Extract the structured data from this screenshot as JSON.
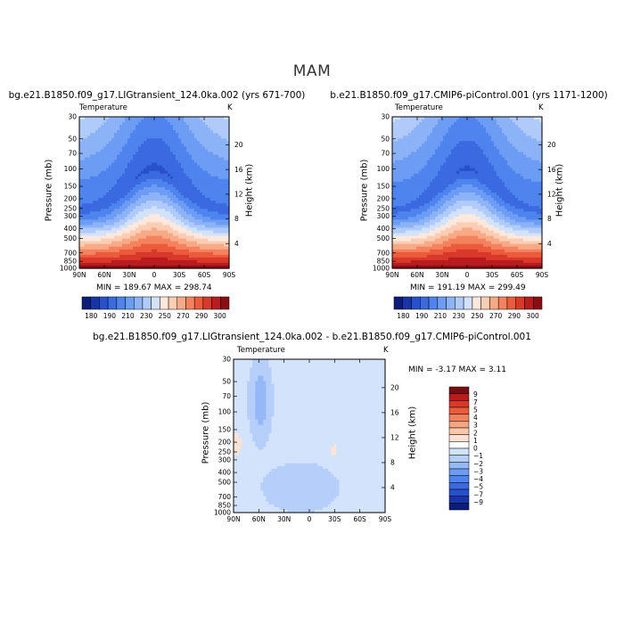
{
  "figure": {
    "title": "MAM"
  },
  "colors": {
    "abs_levels": [
      "#0d1e7a",
      "#1a33a8",
      "#2850cc",
      "#3a69e0",
      "#4f83ee",
      "#6c9cf4",
      "#8db3f7",
      "#b0caf9",
      "#d3e2fb",
      "#fde8dd",
      "#fbcdb3",
      "#f8aa86",
      "#f4825e",
      "#ec5b3c",
      "#d8392a",
      "#b81c1e",
      "#8a0d13"
    ],
    "diff_levels": [
      "#0d1e7a",
      "#1a33a8",
      "#2850cc",
      "#3a69e0",
      "#4f83ee",
      "#6c9cf4",
      "#95b8f7",
      "#b5cffa",
      "#d2e3fb",
      "#ffffff",
      "#fde0cf",
      "#fbc7ab",
      "#f8a67f",
      "#f4825e",
      "#ec5b3c",
      "#d8392a",
      "#b81c1e",
      "#7a0b10"
    ]
  },
  "panels": {
    "p1": {
      "title": "bg.e21.B1850.f09_g17.LIGtransient_124.0ka.002 (yrs 671-700)",
      "left_label": "Temperature",
      "right_label": "K",
      "ylabel": "Pressure (mb)",
      "y2label": "Height (km)",
      "minmax": "MIN = 189.67   MAX = 298.74"
    },
    "p2": {
      "title": "b.e21.B1850.f09_g17.CMIP6-piControl.001 (yrs 1171-1200)",
      "left_label": "Temperature",
      "right_label": "K",
      "ylabel": "Pressure (mb)",
      "y2label": "Height (km)",
      "minmax": "MIN = 191.19   MAX = 299.49"
    },
    "p3": {
      "title": "bg.e21.B1850.f09_g17.LIGtransient_124.0ka.002 - b.e21.B1850.f09_g17.CMIP6-piControl.001",
      "left_label": "Temperature",
      "right_label": "K",
      "ylabel": "Pressure (mb)",
      "y2label": "Height (km)",
      "minmax": "MIN =  -3.17   MAX =   3.11"
    }
  },
  "chart_data": [
    {
      "type": "heatmap",
      "title": "bg.e21.B1850.f09_g17.LIGtransient_124.0ka.002 (yrs 671-700)",
      "variable": "Temperature",
      "units": "K",
      "xlabel": "",
      "ylabel": "Pressure (mb)",
      "y2label": "Height (km)",
      "x_ticks": [
        "90N",
        "60N",
        "30N",
        "0",
        "30S",
        "60S",
        "90S"
      ],
      "x_values": [
        90,
        60,
        30,
        0,
        -30,
        -60,
        -90
      ],
      "y_ticks": [
        "30",
        "50",
        "70",
        "100",
        "150",
        "200",
        "250",
        "300",
        "400",
        "500",
        "700",
        "850",
        "1000"
      ],
      "y_values": [
        30,
        50,
        70,
        100,
        150,
        200,
        250,
        300,
        400,
        500,
        700,
        850,
        1000
      ],
      "y2_ticks": [
        "4",
        "8",
        "12",
        "16",
        "20"
      ],
      "contour_levels": [
        180,
        190,
        200,
        210,
        220,
        230,
        240,
        250,
        260,
        270,
        280,
        290,
        300
      ],
      "colorbar_labels": [
        "180",
        "190",
        "210",
        "230",
        "250",
        "270",
        "290",
        "300"
      ],
      "min": 189.67,
      "max": 298.74,
      "ylog": true,
      "ylim": [
        1000,
        30
      ]
    },
    {
      "type": "heatmap",
      "title": "b.e21.B1850.f09_g17.CMIP6-piControl.001 (yrs 1171-1200)",
      "variable": "Temperature",
      "units": "K",
      "xlabel": "",
      "ylabel": "Pressure (mb)",
      "y2label": "Height (km)",
      "x_ticks": [
        "90N",
        "60N",
        "30N",
        "0",
        "30S",
        "60S",
        "90S"
      ],
      "x_values": [
        90,
        60,
        30,
        0,
        -30,
        -60,
        -90
      ],
      "y_ticks": [
        "30",
        "50",
        "70",
        "100",
        "150",
        "200",
        "250",
        "300",
        "400",
        "500",
        "700",
        "850",
        "1000"
      ],
      "y_values": [
        30,
        50,
        70,
        100,
        150,
        200,
        250,
        300,
        400,
        500,
        700,
        850,
        1000
      ],
      "y2_ticks": [
        "4",
        "8",
        "12",
        "16",
        "20"
      ],
      "contour_levels": [
        180,
        190,
        200,
        210,
        220,
        230,
        240,
        250,
        260,
        270,
        280,
        290,
        300
      ],
      "colorbar_labels": [
        "180",
        "190",
        "210",
        "230",
        "250",
        "270",
        "290",
        "300"
      ],
      "min": 191.19,
      "max": 299.49,
      "ylog": true,
      "ylim": [
        1000,
        30
      ]
    },
    {
      "type": "heatmap",
      "title": "bg.e21.B1850.f09_g17.LIGtransient_124.0ka.002 - b.e21.B1850.f09_g17.CMIP6-piControl.001",
      "variable": "Temperature",
      "units": "K",
      "xlabel": "",
      "ylabel": "Pressure (mb)",
      "y2label": "Height (km)",
      "x_ticks": [
        "90N",
        "60N",
        "30N",
        "0",
        "30S",
        "60S",
        "90S"
      ],
      "x_values": [
        90,
        60,
        30,
        0,
        -30,
        -60,
        -90
      ],
      "y_ticks": [
        "30",
        "50",
        "70",
        "100",
        "150",
        "200",
        "250",
        "300",
        "400",
        "500",
        "700",
        "850",
        "1000"
      ],
      "y_values": [
        30,
        50,
        70,
        100,
        150,
        200,
        250,
        300,
        400,
        500,
        700,
        850,
        1000
      ],
      "y2_ticks": [
        "4",
        "8",
        "12",
        "16",
        "20"
      ],
      "contour_levels": [
        -9,
        -7,
        -5,
        -4,
        -3,
        -2,
        -1,
        0,
        1,
        2,
        3,
        4,
        5,
        7,
        9
      ],
      "colorbar_labels": [
        "9",
        "7",
        "5",
        "4",
        "3",
        "2",
        "1",
        "0",
        "−1",
        "−2",
        "−3",
        "−4",
        "−5",
        "−7",
        "−9"
      ],
      "min": -3.17,
      "max": 3.11,
      "ylog": true,
      "ylim": [
        1000,
        30
      ]
    }
  ]
}
